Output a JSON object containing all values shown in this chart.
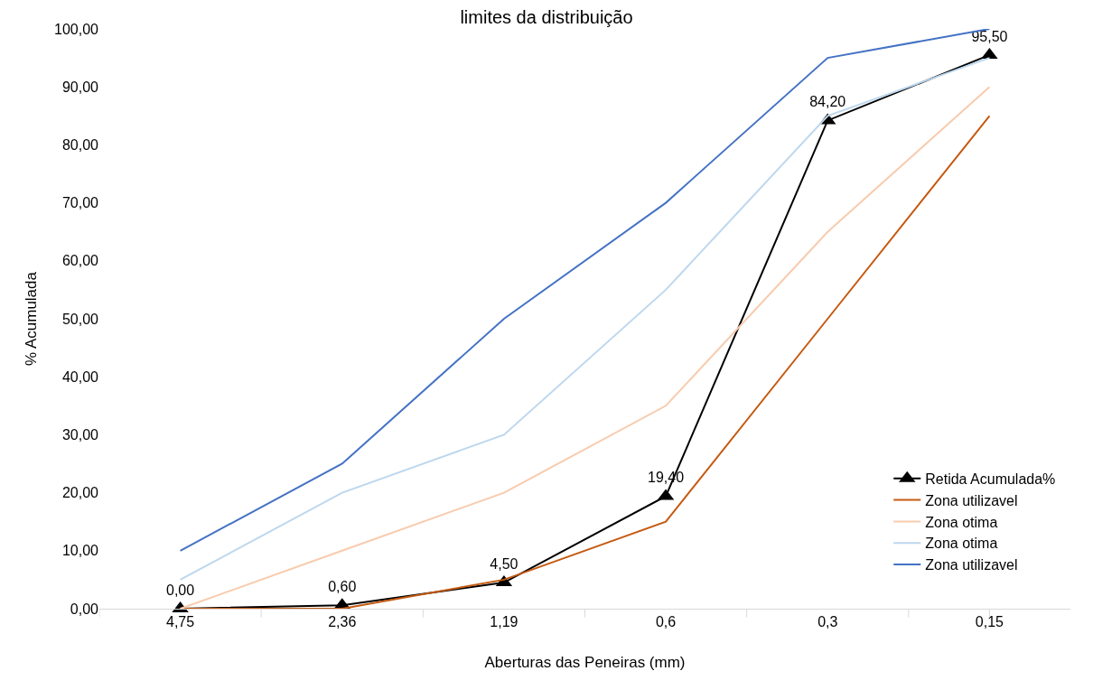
{
  "chart_data": {
    "type": "line",
    "title": "limites da distribuição",
    "xlabel": "Aberturas das Peneiras (mm)",
    "ylabel": "% Acumulada",
    "categories": [
      "4,75",
      "2,36",
      "1,19",
      "0,6",
      "0,3",
      "0,15"
    ],
    "series": [
      {
        "name": "Retida Acumulada%",
        "color": "#000000",
        "values": [
          0,
          0.6,
          4.5,
          19.4,
          84.2,
          95.5
        ],
        "marker": "triangle",
        "value_labels": [
          "0,00",
          "0,60",
          "4,50",
          "19,40",
          "84,20",
          "95,50"
        ]
      },
      {
        "name": "Zona utilizavel",
        "color": "#c55a11",
        "values": [
          0,
          0,
          5,
          15,
          50,
          85
        ]
      },
      {
        "name": "Zona otima",
        "color": "#f8cbad",
        "values": [
          0,
          10,
          20,
          35,
          65,
          90
        ]
      },
      {
        "name": "Zona otima",
        "color": "#bdd7ee",
        "values": [
          5,
          20,
          30,
          55,
          85,
          95
        ]
      },
      {
        "name": "Zona utilizavel",
        "color": "#4472c4",
        "values": [
          10,
          25,
          50,
          70,
          95,
          100
        ]
      }
    ],
    "ylim": [
      0,
      100
    ],
    "yticks": [
      {
        "value": 0,
        "label": "0,00"
      },
      {
        "value": 10,
        "label": "10,00"
      },
      {
        "value": 20,
        "label": "20,00"
      },
      {
        "value": 30,
        "label": "30,00"
      },
      {
        "value": 40,
        "label": "40,00"
      },
      {
        "value": 50,
        "label": "50,00"
      },
      {
        "value": 60,
        "label": "60,00"
      },
      {
        "value": 70,
        "label": "70,00"
      },
      {
        "value": 80,
        "label": "80,00"
      },
      {
        "value": 90,
        "label": "90,00"
      },
      {
        "value": 100,
        "label": "100,00"
      }
    ],
    "grid": false,
    "legend": "bottom right"
  }
}
